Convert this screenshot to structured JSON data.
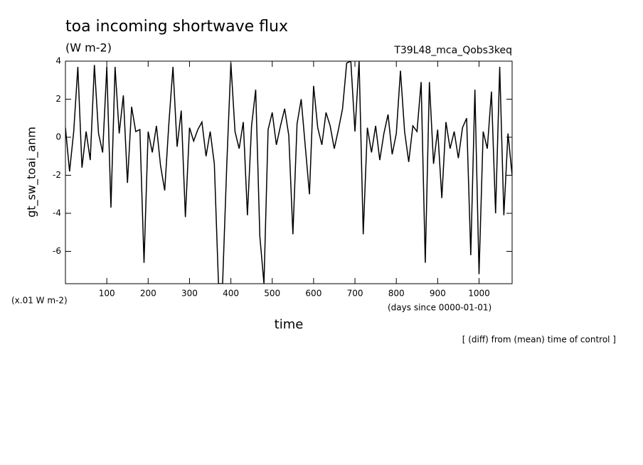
{
  "chart_data": {
    "type": "line",
    "title": "toa incoming shortwave flux",
    "subtitle": "(W m-2)",
    "run_label": "T39L48_mca_Qobs3keq",
    "y_label": "gt_sw_toai_anm",
    "y_unit_note": "(x.01 W m-2)",
    "x_unit_note": "(days since 0000-01-01)",
    "x_label": "time",
    "footnote": "[ (diff) from (mean) time of control ]",
    "xlim": [
      0,
      1080
    ],
    "ylim": [
      -7.7,
      4
    ],
    "xticks": [
      100,
      200,
      300,
      400,
      500,
      600,
      700,
      800,
      900,
      1000
    ],
    "yticks": [
      -6,
      -4,
      -2,
      0,
      2,
      4
    ],
    "x": [
      0,
      10,
      20,
      30,
      40,
      50,
      60,
      70,
      80,
      90,
      100,
      110,
      120,
      130,
      140,
      150,
      160,
      170,
      180,
      190,
      200,
      210,
      220,
      230,
      240,
      250,
      260,
      270,
      280,
      290,
      300,
      310,
      320,
      330,
      340,
      350,
      360,
      370,
      380,
      390,
      400,
      410,
      420,
      430,
      440,
      450,
      460,
      470,
      480,
      490,
      500,
      510,
      520,
      530,
      540,
      550,
      560,
      570,
      580,
      590,
      600,
      610,
      620,
      630,
      640,
      650,
      660,
      670,
      680,
      690,
      700,
      710,
      720,
      730,
      740,
      750,
      760,
      770,
      780,
      790,
      800,
      810,
      820,
      830,
      840,
      850,
      860,
      870,
      880,
      890,
      900,
      910,
      920,
      930,
      940,
      950,
      960,
      970,
      980,
      990,
      1000,
      1010,
      1020,
      1030,
      1040,
      1050,
      1060,
      1070,
      1080
    ],
    "series": [
      {
        "color": "#000000",
        "values": [
          0.5,
          -1.8,
          0.3,
          3.7,
          -1.6,
          0.3,
          -1.2,
          3.8,
          0.2,
          -0.8,
          3.7,
          -3.7,
          3.7,
          0.2,
          2.2,
          -2.4,
          1.6,
          0.3,
          0.4,
          -6.6,
          0.3,
          -0.8,
          0.6,
          -1.5,
          -2.8,
          0.7,
          3.7,
          -0.5,
          1.4,
          -4.2,
          0.5,
          -0.2,
          0.4,
          0.8,
          -1.0,
          0.3,
          -1.4,
          -7.7,
          -7.7,
          -1.5,
          3.9,
          0.3,
          -0.6,
          0.8,
          -4.1,
          0.6,
          2.5,
          -5.2,
          -7.7,
          0.4,
          1.3,
          -0.4,
          0.6,
          1.5,
          0.1,
          -5.1,
          0.7,
          2.0,
          -0.5,
          -3.0,
          2.7,
          0.5,
          -0.4,
          1.3,
          0.6,
          -0.6,
          0.4,
          1.5,
          3.9,
          4.0,
          0.3,
          4.0,
          -5.1,
          0.5,
          -0.8,
          0.6,
          -1.2,
          0.2,
          1.2,
          -0.9,
          0.2,
          3.5,
          0.3,
          -1.3,
          0.6,
          0.3,
          2.9,
          -6.6,
          2.9,
          -1.4,
          0.4,
          -3.2,
          0.8,
          -0.6,
          0.3,
          -1.1,
          0.5,
          1.0,
          -6.2,
          2.5,
          -7.2,
          0.3,
          -0.6,
          2.4,
          -4.0,
          3.7,
          -4.1,
          0.2,
          -2.0
        ]
      }
    ]
  }
}
